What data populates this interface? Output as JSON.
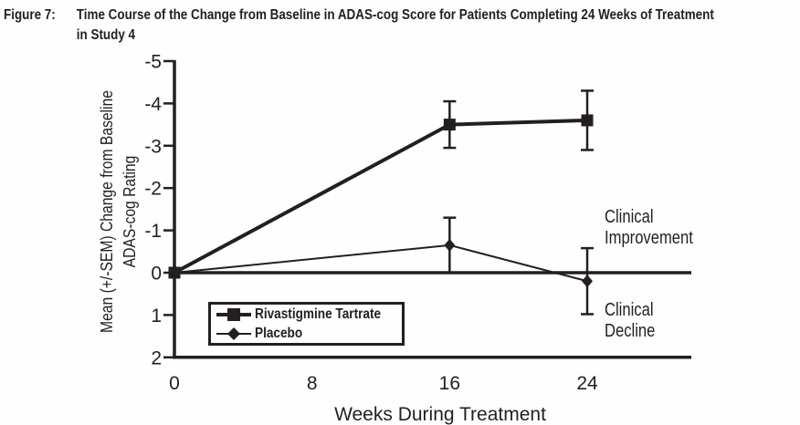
{
  "figure": {
    "label": "Figure 7:",
    "title_line1": "Time Course of the Change from Baseline in ADAS-cog Score for Patients Completing 24 Weeks of Treatment",
    "title_line2": "in Study 4"
  },
  "chart_data": {
    "type": "line",
    "title": "Figure 7: Time Course of the Change from Baseline in ADAS-cog Score for Patients Completing 24 Weeks of Treatment in Study 4",
    "xlabel": "Weeks During Treatment",
    "ylabel": "Mean (+/-SEM) Change from Baseline ADAS-cog Rating",
    "ylabel_lines": [
      "Mean (+/-SEM) Change from Baseline",
      "ADAS-cog Rating"
    ],
    "x": [
      0,
      16,
      24
    ],
    "x_ticks": [
      0,
      8,
      16,
      24
    ],
    "xlim": [
      0,
      30
    ],
    "y_ticks": [
      -5,
      -4,
      -3,
      -2,
      -1,
      0,
      1,
      2
    ],
    "ylim": [
      -5,
      2
    ],
    "y_axis_inverted": true,
    "grid": false,
    "zero_line": true,
    "ink_color": "#231f20",
    "legend_position": "inside-bottom-left",
    "series": [
      {
        "name": "Rivastigmine Tartrate",
        "marker": "square",
        "line_width": 4,
        "values": [
          0,
          -3.5,
          -3.6
        ],
        "sem": [
          0,
          0.55,
          0.7
        ]
      },
      {
        "name": "Placebo",
        "marker": "diamond",
        "line_width": 2,
        "values": [
          0,
          -0.65,
          0.2
        ],
        "sem": [
          0,
          0.65,
          0.78
        ]
      }
    ],
    "annotations": [
      {
        "id": "clinical-improvement",
        "line1": "Clinical",
        "line2": "Improvement"
      },
      {
        "id": "clinical-decline",
        "line1": "Clinical",
        "line2": "Decline"
      }
    ]
  }
}
